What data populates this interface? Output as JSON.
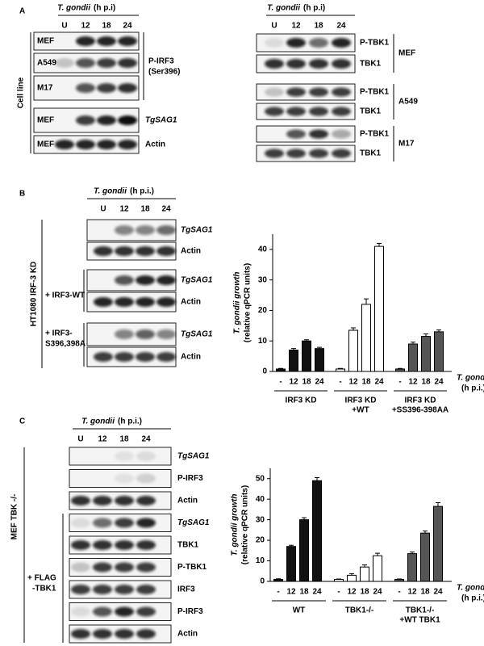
{
  "panel_a": {
    "letter": "A",
    "left_blot": {
      "organism": "T. gondii",
      "time_unit": "(h p.i)",
      "lanes": [
        "U",
        "12",
        "18",
        "24"
      ],
      "side_label": "Cell line",
      "samples": [
        "MEF",
        "A549",
        "M17",
        "MEF",
        "MEF"
      ],
      "targets": [
        [
          "P-IRF3",
          "(Ser396)"
        ],
        [
          "TgSAG1"
        ],
        [
          "Actin"
        ]
      ]
    },
    "right_blot": {
      "organism": "T. gondii",
      "time_unit": "(h p.i)",
      "lanes": [
        "U",
        "12",
        "18",
        "24"
      ],
      "targets": [
        "P-TBK1",
        "TBK1",
        "P-TBK1",
        "TBK1",
        "P-TBK1",
        "TBK1"
      ],
      "samples": [
        "MEF",
        "A549",
        "M17"
      ]
    }
  },
  "panel_b": {
    "letter": "B",
    "blot": {
      "organism": "T. gondii",
      "time_unit": "(h p.i.)",
      "lanes": [
        "U",
        "12",
        "18",
        "24"
      ],
      "side_label": "HT1080 IRF-3 KD",
      "conditions": [
        [
          "+ IRF3-WT"
        ],
        [
          "+ IRF3-",
          "S396,398A"
        ]
      ],
      "targets": [
        "TgSAG1",
        "Actin",
        "TgSAG1",
        "Actin",
        "TgSAG1",
        "Actin"
      ]
    }
  },
  "panel_c": {
    "letter": "C",
    "blot": {
      "organism": "T. gondii",
      "time_unit": "(h p.i.)",
      "lanes": [
        "U",
        "12",
        "18",
        "24"
      ],
      "side_label": "MEF TBK -/-",
      "condition": [
        "+ FLAG",
        "-TBK1"
      ],
      "targets": [
        "TgSAG1",
        "P-IRF3",
        "Actin",
        "TgSAG1",
        "TBK1",
        "P-TBK1",
        "IRF3",
        "P-IRF3",
        "Actin"
      ]
    }
  },
  "chart_data": [
    {
      "type": "bar",
      "y_label": [
        "T. gondii growth",
        "(relative qPCR units)"
      ],
      "x_label": [
        "T. gondii",
        "(h p.i.)"
      ],
      "ylim": [
        0,
        45
      ],
      "yticks": [
        0,
        10,
        20,
        30,
        40
      ],
      "groups": [
        {
          "label": [
            "IRF3 KD"
          ],
          "color": "#111111",
          "categories": [
            "-",
            "12",
            "18",
            "24"
          ],
          "values": [
            0.8,
            7,
            10,
            7.5
          ],
          "errors": [
            0.2,
            0.5,
            0.4,
            0.4
          ]
        },
        {
          "label": [
            "IRF3 KD",
            "+WT"
          ],
          "color": "#ffffff",
          "categories": [
            "-",
            "12",
            "18",
            "24"
          ],
          "values": [
            0.8,
            13.5,
            22,
            41
          ],
          "errors": [
            0.2,
            0.8,
            1.8,
            1.0
          ]
        },
        {
          "label": [
            "IRF3 KD",
            "+SS396-398AA"
          ],
          "color": "#555555",
          "categories": [
            "-",
            "12",
            "18",
            "24"
          ],
          "values": [
            0.8,
            9,
            11.5,
            13
          ],
          "errors": [
            0.2,
            0.6,
            0.8,
            0.6
          ]
        }
      ]
    },
    {
      "type": "bar",
      "y_label": [
        "T. gondii growth",
        "(relative qPCR units)"
      ],
      "x_label": [
        "T. gondii",
        "(h p.i.)"
      ],
      "ylim": [
        0,
        55
      ],
      "yticks": [
        0,
        10,
        20,
        30,
        40,
        50
      ],
      "groups": [
        {
          "label": [
            "WT"
          ],
          "color": "#111111",
          "categories": [
            "-",
            "12",
            "18",
            "24"
          ],
          "values": [
            1,
            17,
            30,
            49
          ],
          "errors": [
            0.3,
            0.6,
            1,
            1.5
          ]
        },
        {
          "label": [
            "TBK1-/-"
          ],
          "color": "#ffffff",
          "categories": [
            "-",
            "12",
            "18",
            "24"
          ],
          "values": [
            1,
            3,
            7,
            12.5
          ],
          "errors": [
            0.2,
            0.8,
            1,
            1.2
          ]
        },
        {
          "label": [
            "TBK1-/-",
            "+WT TBK1"
          ],
          "color": "#555555",
          "categories": [
            "-",
            "12",
            "18",
            "24"
          ],
          "values": [
            1,
            13.5,
            23.5,
            36.5
          ],
          "errors": [
            0.2,
            0.8,
            1,
            1.8
          ]
        }
      ]
    }
  ]
}
